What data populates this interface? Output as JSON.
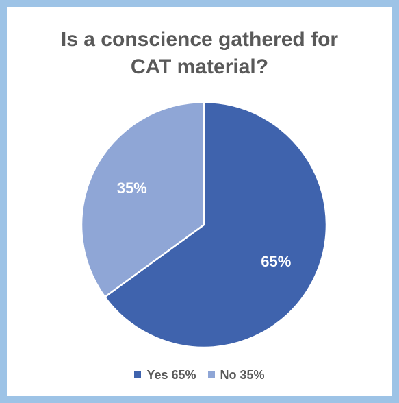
{
  "chart_data": {
    "type": "pie",
    "title_lines": [
      "Is a conscience gathered for",
      "CAT material?"
    ],
    "slices": [
      {
        "label": "Yes",
        "value": 65,
        "data_label": "65%",
        "legend_label": "Yes 65%",
        "color": "#3f63ad"
      },
      {
        "label": "No",
        "value": 35,
        "data_label": "35%",
        "legend_label": "No 35%",
        "color": "#8fa6d6"
      }
    ],
    "legend_position": "bottom"
  },
  "colors": {
    "border": "#9dc3e6",
    "text": "#595959",
    "label_text": "#ffffff"
  }
}
